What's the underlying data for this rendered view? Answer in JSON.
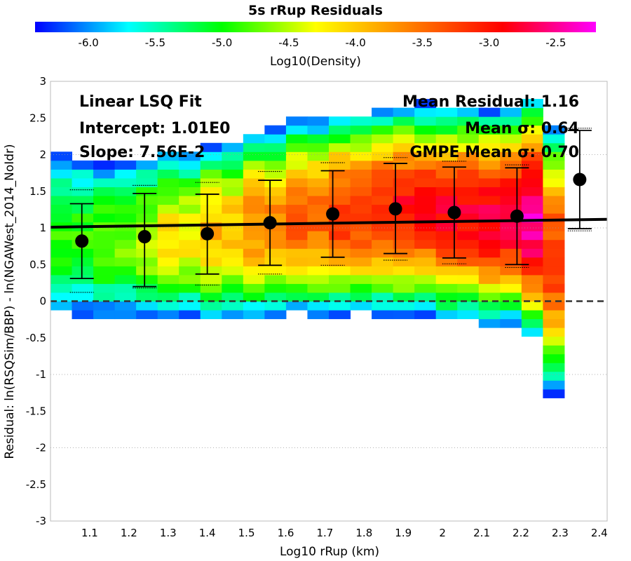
{
  "chart_data": {
    "type": "heatmap",
    "title": "5s rRup Residuals",
    "xlabel": "Log10 rRup (km)",
    "ylabel": "Residual: ln(RSQSim/BBP) - ln(NGAWest_2014_NoIdr)",
    "xlim": [
      1.0,
      2.42
    ],
    "ylim": [
      -3,
      3
    ],
    "xticks": [
      "1.1",
      "1.2",
      "1.3",
      "1.4",
      "1.5",
      "1.6",
      "1.7",
      "1.8",
      "1.9",
      "2",
      "2.1",
      "2.2",
      "2.3",
      "2.4"
    ],
    "yticks": [
      "3",
      "2.5",
      "2",
      "1.5",
      "1",
      "0.5",
      "0",
      "-0.5",
      "-1",
      "-1.5",
      "-2",
      "-2.5",
      "-3"
    ],
    "grid": "horizontal dotted at -2, -1, 1, 2",
    "colorbar": {
      "label": "Log10(Density)",
      "range": [
        -6.4,
        -2.2
      ],
      "ticks": [
        "-6.0",
        "-5.5",
        "-5.0",
        "-4.5",
        "-4.0",
        "-3.5",
        "-3.0",
        "-2.5"
      ],
      "colors": [
        "#0000ff",
        "#00ffff",
        "#00ff00",
        "#ffff00",
        "#ff8000",
        "#ff0000",
        "#ff00ff"
      ]
    },
    "fit_line": {
      "intercept": 1.01,
      "slope": 0.0756,
      "color": "#000000"
    },
    "zero_line": {
      "y": 0,
      "style": "dashed"
    },
    "binned_stats": [
      {
        "x": 1.08,
        "mean": 0.82,
        "minus": 0.31,
        "plus": 1.33,
        "gmpe_minus": 0.12,
        "gmpe_plus": 1.52
      },
      {
        "x": 1.24,
        "mean": 0.88,
        "minus": 0.2,
        "plus": 1.47,
        "gmpe_minus": 0.18,
        "gmpe_plus": 1.58
      },
      {
        "x": 1.4,
        "mean": 0.92,
        "minus": 0.37,
        "plus": 1.46,
        "gmpe_minus": 0.22,
        "gmpe_plus": 1.62
      },
      {
        "x": 1.56,
        "mean": 1.07,
        "minus": 0.49,
        "plus": 1.65,
        "gmpe_minus": 0.37,
        "gmpe_plus": 1.77
      },
      {
        "x": 1.72,
        "mean": 1.19,
        "minus": 0.6,
        "plus": 1.78,
        "gmpe_minus": 0.49,
        "gmpe_plus": 1.89
      },
      {
        "x": 1.88,
        "mean": 1.26,
        "minus": 0.65,
        "plus": 1.88,
        "gmpe_minus": 0.56,
        "gmpe_plus": 1.96
      },
      {
        "x": 2.03,
        "mean": 1.21,
        "minus": 0.59,
        "plus": 1.83,
        "gmpe_minus": 0.51,
        "gmpe_plus": 1.91
      },
      {
        "x": 2.19,
        "mean": 1.16,
        "minus": 0.5,
        "plus": 1.82,
        "gmpe_minus": 0.46,
        "gmpe_plus": 1.86
      },
      {
        "x": 2.35,
        "mean": 1.66,
        "minus": 0.99,
        "plus": 2.33,
        "gmpe_minus": 0.96,
        "gmpe_plus": 2.36
      }
    ],
    "annotations": {
      "left": [
        "Linear LSQ Fit",
        "Intercept: 1.01E0",
        "Slope: 7.56E-2"
      ],
      "right": [
        "Mean Residual: 1.16",
        "Mean σ: 0.64",
        "GMPE Mean σ: 0.70"
      ]
    },
    "density": {
      "x_bins": [
        1.0,
        2.32,
        24
      ],
      "y_bins": [
        -1.1,
        2.9,
        40
      ],
      "columns": [
        {
          "x": 1.05,
          "center": 0.9,
          "spread": 0.85,
          "peak": -4.9
        },
        {
          "x": 1.15,
          "center": 0.85,
          "spread": 0.8,
          "peak": -4.7
        },
        {
          "x": 1.25,
          "center": 0.85,
          "spread": 0.8,
          "peak": -4.5
        },
        {
          "x": 1.35,
          "center": 0.9,
          "spread": 0.75,
          "peak": -4.2
        },
        {
          "x": 1.45,
          "center": 0.95,
          "spread": 0.75,
          "peak": -3.9
        },
        {
          "x": 1.55,
          "center": 1.05,
          "spread": 0.75,
          "peak": -3.6
        },
        {
          "x": 1.65,
          "center": 1.15,
          "spread": 0.75,
          "peak": -3.4
        },
        {
          "x": 1.75,
          "center": 1.2,
          "spread": 0.75,
          "peak": -3.2
        },
        {
          "x": 1.85,
          "center": 1.25,
          "spread": 0.75,
          "peak": -3.05
        },
        {
          "x": 1.95,
          "center": 1.25,
          "spread": 0.75,
          "peak": -2.95
        },
        {
          "x": 2.05,
          "center": 1.2,
          "spread": 0.75,
          "peak": -2.85
        },
        {
          "x": 2.15,
          "center": 1.15,
          "spread": 0.75,
          "peak": -2.75
        },
        {
          "x": 2.25,
          "center": 1.15,
          "spread": 0.8,
          "peak": -2.45
        },
        {
          "x": 2.3,
          "center": 0.6,
          "spread": 1.0,
          "peak": -3.2
        }
      ]
    }
  }
}
